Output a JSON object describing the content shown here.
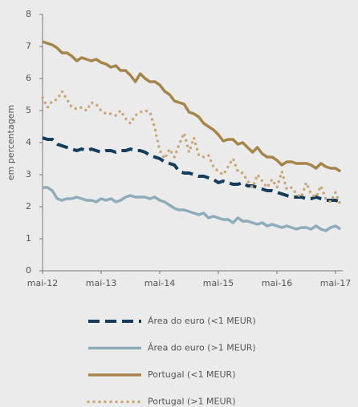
{
  "chart_data": {
    "type": "line",
    "y_label": "em percentagem",
    "categories": [
      "mai-12",
      null,
      null,
      null,
      null,
      null,
      null,
      null,
      null,
      null,
      null,
      null,
      "mai-13",
      null,
      null,
      null,
      null,
      null,
      null,
      null,
      null,
      null,
      null,
      null,
      "mai-14",
      null,
      null,
      null,
      null,
      null,
      null,
      null,
      null,
      null,
      null,
      null,
      "mai-15",
      null,
      null,
      null,
      null,
      null,
      null,
      null,
      null,
      null,
      null,
      null,
      "mai-16",
      null,
      null,
      null,
      null,
      null,
      null,
      null,
      null,
      null,
      null,
      null,
      "mai-17",
      null
    ],
    "ylim": [
      0,
      8
    ],
    "yticks": [
      0,
      1,
      2,
      3,
      4,
      5,
      6,
      7,
      8
    ],
    "series": [
      {
        "name": "Área do euro (<1 MEUR)",
        "color": "#143c5c",
        "style": "dashed",
        "values": [
          4.15,
          4.1,
          4.1,
          3.95,
          3.9,
          3.85,
          3.8,
          3.75,
          3.8,
          3.75,
          3.8,
          3.75,
          3.7,
          3.75,
          3.75,
          3.7,
          3.75,
          3.75,
          3.8,
          3.75,
          3.75,
          3.7,
          3.6,
          3.55,
          3.5,
          3.4,
          3.35,
          3.3,
          3.1,
          3.05,
          3.05,
          3.0,
          2.95,
          2.95,
          2.9,
          2.85,
          2.75,
          2.8,
          2.75,
          2.7,
          2.7,
          2.75,
          2.65,
          2.65,
          2.6,
          2.55,
          2.5,
          2.5,
          2.45,
          2.4,
          2.35,
          2.3,
          2.3,
          2.3,
          2.25,
          2.25,
          2.3,
          2.25,
          2.2,
          2.2,
          2.2,
          2.15
        ]
      },
      {
        "name": "Área do euro (>1 MEUR)",
        "color": "#8eacba",
        "style": "solid",
        "values": [
          2.6,
          2.6,
          2.5,
          2.25,
          2.2,
          2.25,
          2.25,
          2.3,
          2.25,
          2.2,
          2.2,
          2.15,
          2.25,
          2.2,
          2.25,
          2.15,
          2.2,
          2.3,
          2.35,
          2.3,
          2.3,
          2.3,
          2.25,
          2.3,
          2.2,
          2.15,
          2.05,
          1.95,
          1.9,
          1.9,
          1.85,
          1.8,
          1.75,
          1.8,
          1.65,
          1.7,
          1.65,
          1.6,
          1.6,
          1.5,
          1.65,
          1.55,
          1.55,
          1.5,
          1.45,
          1.5,
          1.4,
          1.45,
          1.4,
          1.35,
          1.4,
          1.35,
          1.3,
          1.35,
          1.35,
          1.3,
          1.4,
          1.3,
          1.25,
          1.35,
          1.4,
          1.3
        ]
      },
      {
        "name": "Portugal (<1 MEUR)",
        "color": "#a5854a",
        "style": "solid",
        "values": [
          7.15,
          7.1,
          7.05,
          6.95,
          6.8,
          6.8,
          6.7,
          6.55,
          6.65,
          6.6,
          6.55,
          6.6,
          6.5,
          6.45,
          6.35,
          6.4,
          6.25,
          6.25,
          6.1,
          5.9,
          6.15,
          6.0,
          5.9,
          5.9,
          5.8,
          5.6,
          5.5,
          5.3,
          5.25,
          5.2,
          4.95,
          4.9,
          4.8,
          4.6,
          4.5,
          4.4,
          4.25,
          4.05,
          4.1,
          4.1,
          3.95,
          4.0,
          3.85,
          3.7,
          3.85,
          3.65,
          3.55,
          3.55,
          3.45,
          3.3,
          3.4,
          3.4,
          3.35,
          3.35,
          3.35,
          3.3,
          3.2,
          3.35,
          3.25,
          3.2,
          3.2,
          3.1
        ]
      },
      {
        "name": "Portugal (>1 MEUR)",
        "color": "#c9a87a",
        "style": "dotted",
        "values": [
          5.4,
          5.1,
          5.3,
          5.35,
          5.6,
          5.35,
          5.1,
          5.05,
          5.1,
          5.0,
          5.25,
          5.2,
          5.0,
          4.9,
          4.9,
          4.85,
          5.0,
          4.75,
          4.6,
          4.85,
          4.95,
          5.0,
          4.95,
          4.45,
          3.75,
          3.5,
          3.8,
          3.55,
          3.95,
          4.3,
          3.7,
          4.15,
          3.6,
          3.55,
          3.6,
          3.25,
          3.1,
          3.0,
          3.25,
          3.5,
          3.1,
          3.05,
          2.8,
          2.6,
          3.0,
          2.8,
          2.6,
          2.85,
          2.6,
          3.1,
          2.55,
          2.6,
          2.4,
          2.3,
          2.75,
          2.4,
          2.3,
          2.65,
          2.25,
          2.15,
          2.45,
          2.05
        ]
      }
    ]
  }
}
